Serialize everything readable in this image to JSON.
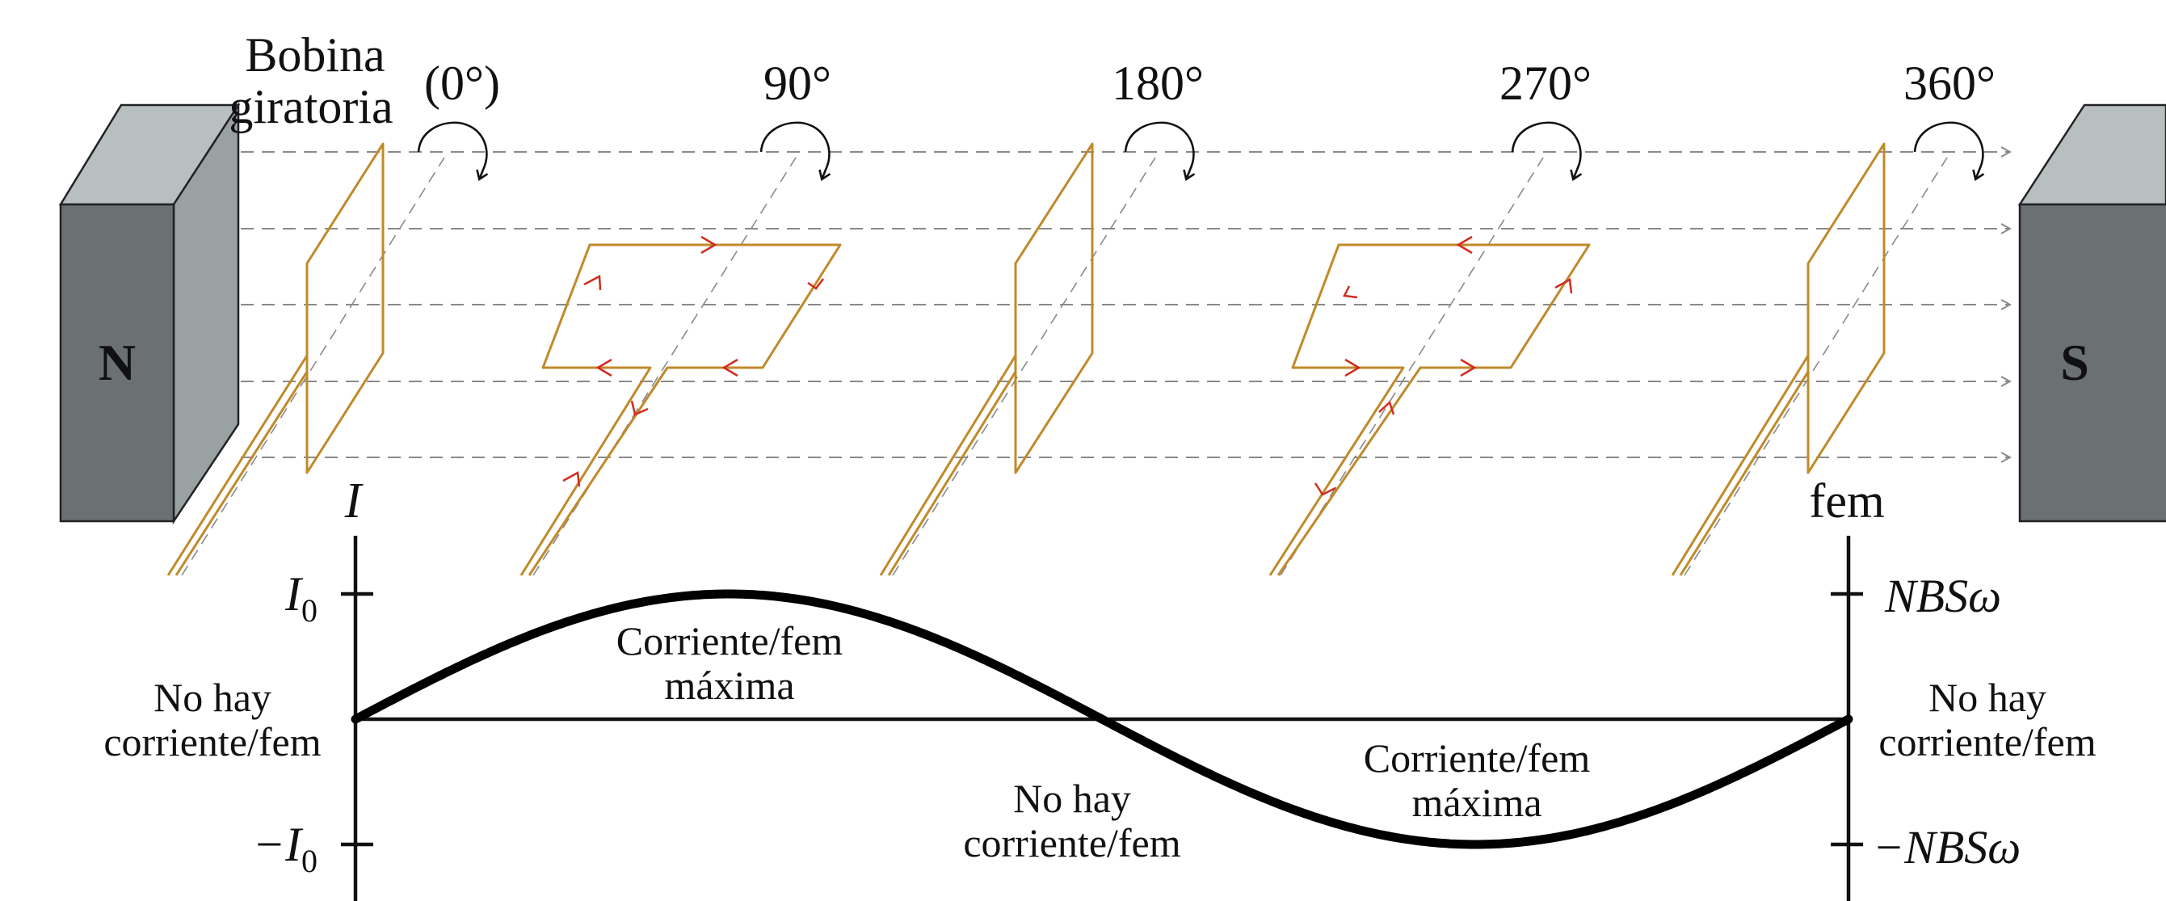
{
  "magnets": {
    "north_label": "N",
    "south_label": "S",
    "front_color": "#6b7072",
    "side_color": "#9aa1a3",
    "top_color": "#b8bfc1"
  },
  "coil_color": "#c08a2a",
  "current_arrow_color": "#d42b1e",
  "labels": {
    "coil_title_line1": "Bobina",
    "coil_title_line2": "giratoria"
  },
  "angles": [
    "(0°)",
    "90°",
    "180°",
    "270°",
    "360°"
  ],
  "left_axis": {
    "symbol": "I",
    "pos_tick_base": "I",
    "pos_tick_sub": "0",
    "neg_tick_base": "−I",
    "neg_tick_sub": "0"
  },
  "right_axis": {
    "symbol": "fem",
    "pos_tick": "NBSω",
    "neg_tick": "−NBSω"
  },
  "annotations": {
    "left_zero_l1": "No hay",
    "left_zero_l2": "corriente/fem",
    "max1_l1": "Corriente/fem",
    "max1_l2": "máxima",
    "mid_zero_l1": "No hay",
    "mid_zero_l2": "corriente/fem",
    "max2_l1": "Corriente/fem",
    "max2_l2": "máxima",
    "right_zero_l1": "No hay",
    "right_zero_l2": "corriente/fem"
  },
  "chart_data": {
    "type": "line",
    "curve": "sine",
    "x_domain_degrees": [
      0,
      360
    ],
    "y_peak": "I0 / NBSω",
    "samples_x_degrees": [
      0,
      90,
      180,
      270,
      360
    ],
    "samples_y_normalized": [
      0,
      1,
      0,
      -1,
      0
    ]
  }
}
